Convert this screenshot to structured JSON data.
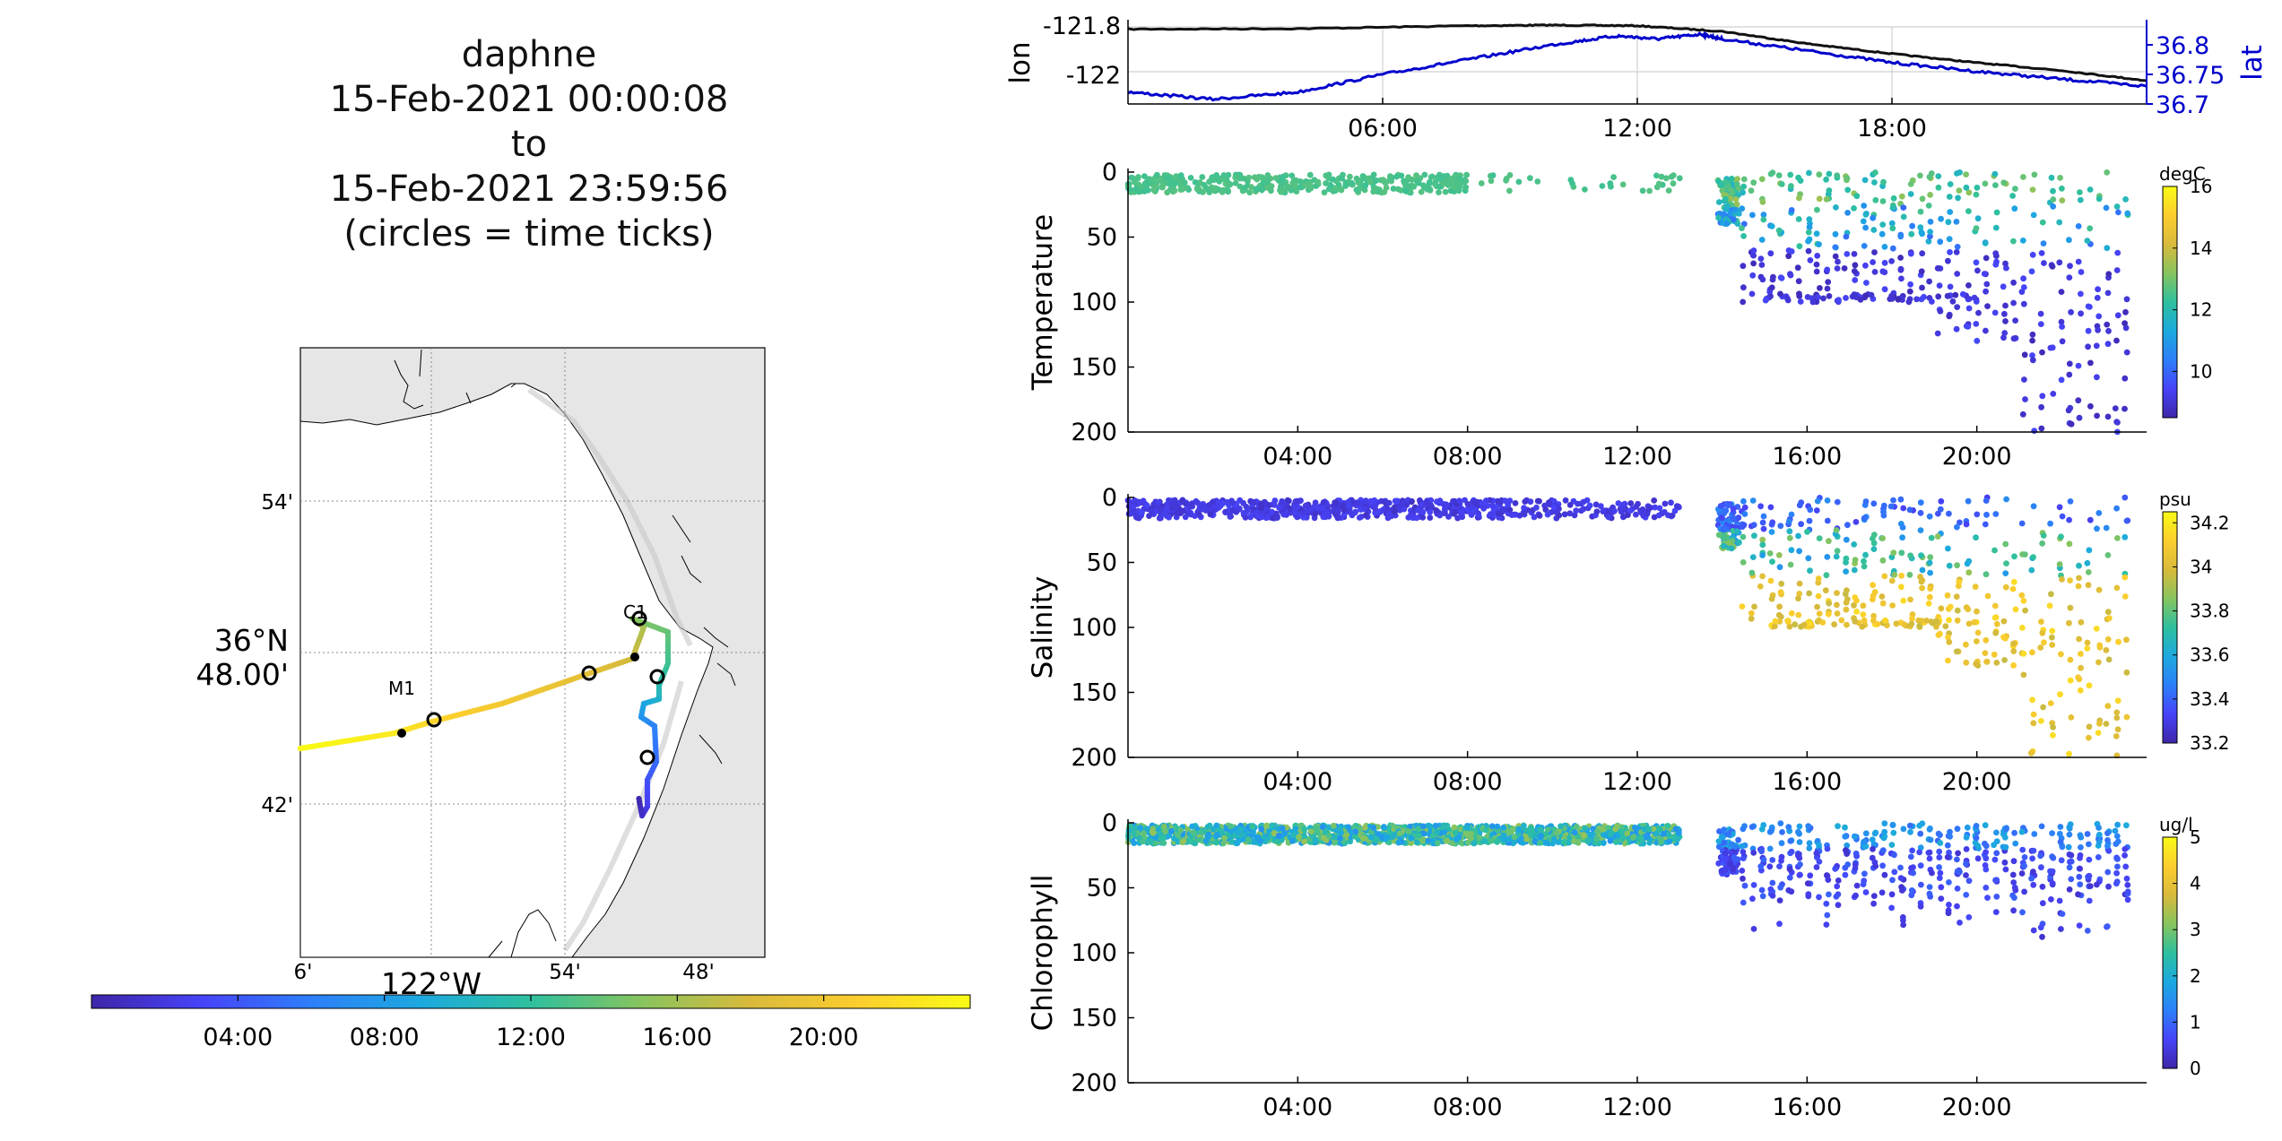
{
  "title": {
    "lines": [
      "daphne",
      "15-Feb-2021 00:00:08",
      "to",
      "15-Feb-2021 23:59:56",
      "(circles = time ticks)"
    ]
  },
  "colors": {
    "lon_line": "#111111",
    "lat_line": "#0000cc",
    "land": "#e6e6e6",
    "grid": "#b0b0b0",
    "parula": [
      "#3e26a8",
      "#4743f8",
      "#2d7ff9",
      "#1ca9df",
      "#2ec09e",
      "#87c45f",
      "#d9ba3b",
      "#fcce2e",
      "#f9fb15"
    ]
  },
  "map": {
    "lat_ticks": [
      "54'",
      "42'"
    ],
    "lat_center_label": [
      "36°N",
      "48.00'"
    ],
    "lon_ticks": [
      "6'",
      "54'",
      "48'"
    ],
    "lon_center_label": "122°W",
    "stations": [
      {
        "name": "M1",
        "lon": -122.02,
        "lat": 36.747
      },
      {
        "name": "C1",
        "lon": -121.848,
        "lat": 36.797
      }
    ],
    "time_colorbar_ticks": [
      "04:00",
      "08:00",
      "12:00",
      "16:00",
      "20:00"
    ]
  },
  "chart_data": [
    {
      "type": "line",
      "id": "lon-lat",
      "ylabel": "lon",
      "ylabel_right": "lat",
      "x_ticks": [
        "06:00",
        "12:00",
        "18:00"
      ],
      "y_ticks": [
        "-121.8",
        "-122"
      ],
      "y_ticks_right": [
        "36.8",
        "36.75",
        "36.7"
      ],
      "xlim_hours": [
        0,
        24
      ],
      "grid": true,
      "series": [
        {
          "axis": "left",
          "points_hours": [
            [
              0,
              -121.81
            ],
            [
              4,
              -121.808
            ],
            [
              8,
              -121.795
            ],
            [
              10,
              -121.792
            ],
            [
              12,
              -121.795
            ],
            [
              14,
              -121.82
            ],
            [
              16,
              -121.875
            ],
            [
              18,
              -121.92
            ],
            [
              20,
              -121.96
            ],
            [
              22,
              -121.995
            ],
            [
              24,
              -122.04
            ]
          ]
        },
        {
          "axis": "right",
          "points_hours": [
            [
              0,
              36.72
            ],
            [
              2,
              36.708
            ],
            [
              4,
              36.72
            ],
            [
              6,
              36.75
            ],
            [
              8,
              36.775
            ],
            [
              10,
              36.8
            ],
            [
              11.5,
              36.815
            ],
            [
              12.5,
              36.81
            ],
            [
              13.5,
              36.818
            ],
            [
              14,
              36.81
            ],
            [
              16,
              36.79
            ],
            [
              18,
              36.77
            ],
            [
              20,
              36.755
            ],
            [
              22,
              36.742
            ],
            [
              24,
              36.73
            ]
          ]
        }
      ]
    },
    {
      "type": "scatter",
      "id": "temperature",
      "ylabel": "Temperature",
      "units": "degC",
      "x_ticks": [
        "04:00",
        "08:00",
        "12:00",
        "16:00",
        "20:00"
      ],
      "y_ticks": [
        "0",
        "50",
        "100",
        "150",
        "200"
      ],
      "ylim": [
        200,
        0
      ],
      "colorbar_ticks": [
        "16",
        "14",
        "12",
        "10"
      ],
      "clim": [
        8.5,
        16
      ]
    },
    {
      "type": "scatter",
      "id": "salinity",
      "ylabel": "Salinity",
      "units": "psu",
      "x_ticks": [
        "04:00",
        "08:00",
        "12:00",
        "16:00",
        "20:00"
      ],
      "y_ticks": [
        "0",
        "50",
        "100",
        "150",
        "200"
      ],
      "ylim": [
        200,
        0
      ],
      "colorbar_ticks": [
        "34.2",
        "34",
        "33.8",
        "33.6",
        "33.4",
        "33.2"
      ],
      "clim": [
        33.2,
        34.25
      ]
    },
    {
      "type": "scatter",
      "id": "chlorophyll",
      "ylabel": "Chlorophyll",
      "units": "ug/l",
      "x_ticks": [
        "04:00",
        "08:00",
        "12:00",
        "16:00",
        "20:00"
      ],
      "y_ticks": [
        "0",
        "50",
        "100",
        "150",
        "200"
      ],
      "ylim": [
        200,
        0
      ],
      "colorbar_ticks": [
        "5",
        "4",
        "3",
        "2",
        "1",
        "0"
      ],
      "clim": [
        0,
        5
      ]
    }
  ]
}
